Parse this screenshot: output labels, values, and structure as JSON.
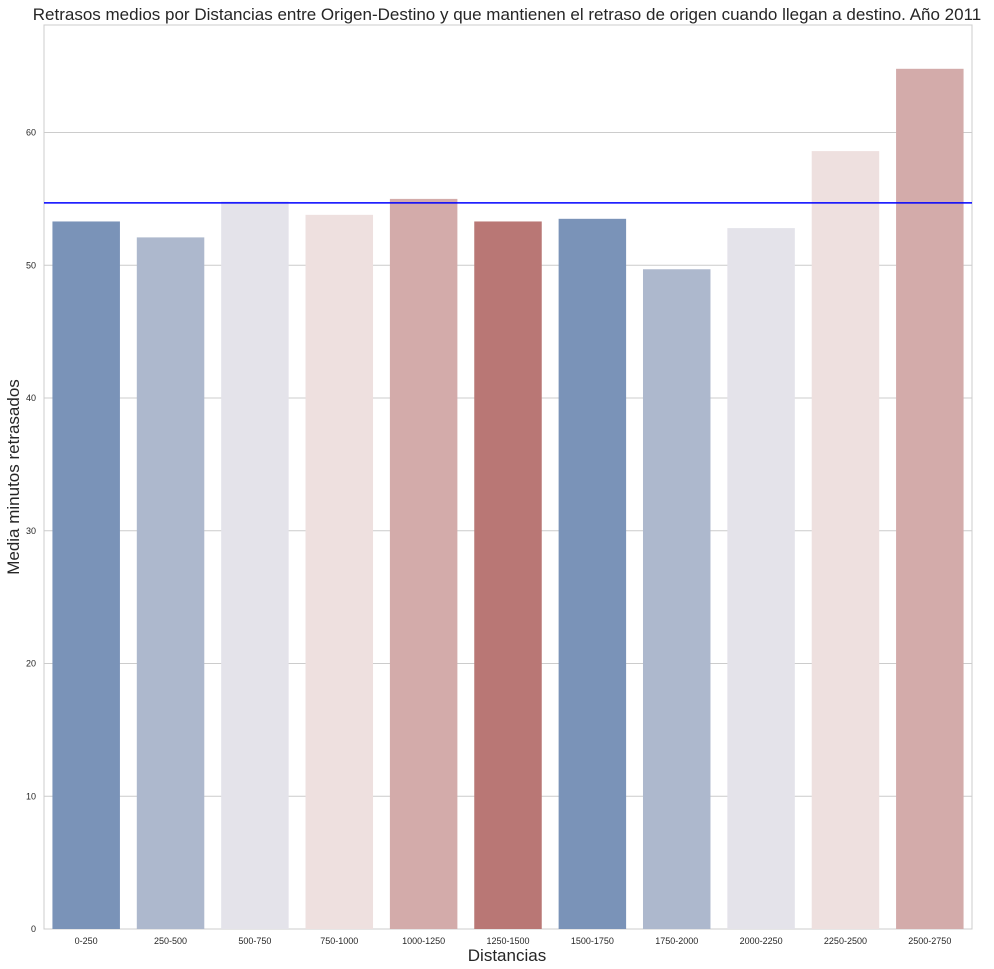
{
  "chart_data": {
    "type": "bar",
    "title": "Retrasos medios por Distancias entre Origen-Destino y que mantienen el retraso de origen cuando llegan a destino. Año 2011",
    "xlabel": "Distancias",
    "ylabel": "Media minutos retrasados",
    "categories": [
      "0-250",
      "250-500",
      "500-750",
      "750-1000",
      "1000-1250",
      "1250-1500",
      "1500-1750",
      "1750-2000",
      "2000-2250",
      "2250-2500",
      "2500-2750"
    ],
    "values": [
      53.3,
      52.1,
      54.8,
      53.8,
      55.0,
      53.3,
      53.5,
      49.7,
      52.8,
      58.6,
      64.8
    ],
    "ylim": [
      0,
      68.1
    ],
    "yticks": [
      0,
      10,
      20,
      30,
      40,
      50,
      60
    ],
    "reference_line": {
      "value": 54.7,
      "color": "#0000ff"
    },
    "grid": "horizontal",
    "colors": [
      "#7a93b8",
      "#adb8cd",
      "#e4e3ea",
      "#eee0df",
      "#d3abaa",
      "#b97775",
      "#7a93b8",
      "#adb8cd",
      "#e4e3ea",
      "#eee0df",
      "#d3abaa"
    ]
  }
}
